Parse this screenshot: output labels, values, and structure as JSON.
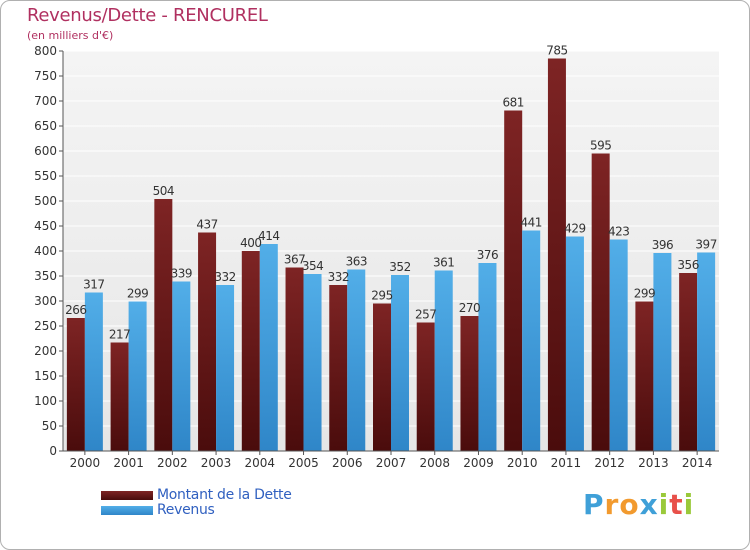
{
  "header": {
    "title": "Revenus/Dette - RENCUREL",
    "subtitle": "(en milliers d'€)"
  },
  "legend": {
    "items": [
      {
        "label": "Montant de la Dette",
        "color": "#6b1a1a"
      },
      {
        "label": "Revenus",
        "color": "#4aa3e0"
      }
    ]
  },
  "logo": {
    "text": "Proxiti",
    "letters": [
      {
        "ch": "P",
        "color": "#3fa0d8"
      },
      {
        "ch": "r",
        "color": "#f29a2e"
      },
      {
        "ch": "o",
        "color": "#f29a2e"
      },
      {
        "ch": "x",
        "color": "#3fa0d8"
      },
      {
        "ch": "i",
        "color": "#9ac93a"
      },
      {
        "ch": "t",
        "color": "#e8504a"
      },
      {
        "ch": "i",
        "color": "#9ac93a"
      }
    ]
  },
  "chart_data": {
    "type": "bar",
    "title": "Revenus/Dette - RENCUREL",
    "subtitle": "(en milliers d'€)",
    "categories": [
      "2000",
      "2001",
      "2002",
      "2003",
      "2004",
      "2005",
      "2006",
      "2007",
      "2008",
      "2009",
      "2010",
      "2011",
      "2012",
      "2013",
      "2014"
    ],
    "series": [
      {
        "name": "Montant de la Dette",
        "color": "#6b1a1a",
        "values": [
          266,
          217,
          504,
          437,
          400,
          367,
          332,
          295,
          257,
          270,
          681,
          785,
          595,
          299,
          356
        ]
      },
      {
        "name": "Revenus",
        "color": "#4aa3e0",
        "values": [
          317,
          299,
          339,
          332,
          414,
          354,
          363,
          352,
          361,
          376,
          441,
          429,
          423,
          396,
          397
        ]
      }
    ],
    "ylim": [
      0,
      800
    ],
    "ytick_step": 50,
    "grid": true,
    "legend_position": "bottom-left"
  }
}
